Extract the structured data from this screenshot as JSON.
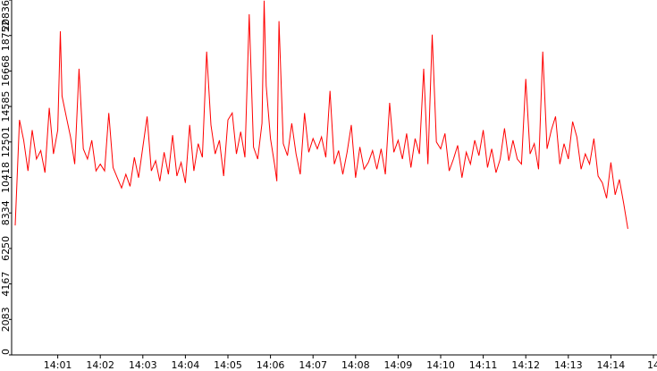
{
  "chart_data": {
    "type": "line",
    "title": "",
    "xlabel": "",
    "ylabel": "",
    "grid": false,
    "line_color": "#ff0000",
    "axis_color": "#000000",
    "ylim": [
      0,
      20836
    ],
    "y_ticks": [
      0,
      2083,
      4167,
      6250,
      8334,
      10418,
      12501,
      14585,
      16668,
      18752,
      20836
    ],
    "y_tick_labels": [
      "0",
      "2083",
      "4167",
      "6250",
      "8334",
      "10418",
      "12501",
      "14585",
      "16668",
      "18752",
      "20836"
    ],
    "x_range_minutes": [
      0,
      14.4
    ],
    "x_ticks": [
      1,
      2,
      3,
      4,
      5,
      6,
      7,
      8,
      9,
      10,
      11,
      12,
      13,
      14,
      15
    ],
    "x_tick_labels": [
      "14:01",
      "14:02",
      "14:03",
      "14:04",
      "14:05",
      "14:06",
      "14:07",
      "14:08",
      "14:09",
      "14:10",
      "14:11",
      "14:12",
      "14:13",
      "14:14",
      "14"
    ],
    "series": [
      {
        "x": [
          0.0,
          0.1,
          0.2,
          0.3,
          0.4,
          0.5,
          0.6,
          0.7,
          0.8,
          0.9,
          1.0,
          1.06,
          1.1,
          1.2,
          1.3,
          1.4,
          1.5,
          1.6,
          1.7,
          1.8,
          1.9,
          2.0,
          2.1,
          2.2,
          2.3,
          2.4,
          2.5,
          2.6,
          2.7,
          2.8,
          2.9,
          3.0,
          3.1,
          3.2,
          3.3,
          3.4,
          3.5,
          3.6,
          3.7,
          3.8,
          3.9,
          4.0,
          4.1,
          4.2,
          4.3,
          4.4,
          4.5,
          4.6,
          4.7,
          4.8,
          4.9,
          5.0,
          5.1,
          5.2,
          5.3,
          5.4,
          5.5,
          5.6,
          5.7,
          5.8,
          5.85,
          5.9,
          6.0,
          6.1,
          6.15,
          6.2,
          6.3,
          6.4,
          6.5,
          6.6,
          6.7,
          6.8,
          6.9,
          7.0,
          7.1,
          7.2,
          7.3,
          7.4,
          7.5,
          7.6,
          7.7,
          7.8,
          7.9,
          8.0,
          8.1,
          8.2,
          8.3,
          8.4,
          8.5,
          8.6,
          8.7,
          8.8,
          8.9,
          9.0,
          9.1,
          9.2,
          9.3,
          9.4,
          9.5,
          9.6,
          9.7,
          9.8,
          9.9,
          10.0,
          10.1,
          10.2,
          10.3,
          10.4,
          10.5,
          10.6,
          10.7,
          10.8,
          10.9,
          11.0,
          11.1,
          11.2,
          11.3,
          11.4,
          11.5,
          11.6,
          11.7,
          11.8,
          11.9,
          12.0,
          12.1,
          12.2,
          12.3,
          12.4,
          12.5,
          12.6,
          12.7,
          12.8,
          12.9,
          13.0,
          13.1,
          13.2,
          13.3,
          13.4,
          13.5,
          13.6,
          13.7,
          13.8,
          13.9,
          14.0,
          14.1,
          14.2,
          14.3,
          14.4
        ],
        "values": [
          7600,
          13800,
          12600,
          10800,
          13200,
          11500,
          12000,
          10700,
          14500,
          11800,
          13200,
          19000,
          15200,
          14000,
          12800,
          11200,
          16800,
          12100,
          11500,
          12600,
          10800,
          11200,
          10800,
          14200,
          11000,
          10400,
          9800,
          10600,
          9900,
          11600,
          10400,
          12200,
          14000,
          10800,
          11400,
          10200,
          11900,
          10600,
          12900,
          10500,
          11300,
          10100,
          13500,
          10800,
          12400,
          11600,
          17800,
          13500,
          11800,
          12600,
          10500,
          13800,
          14200,
          11800,
          13100,
          11600,
          20000,
          12200,
          11500,
          13600,
          20800,
          15800,
          12700,
          11100,
          10200,
          19600,
          12400,
          11700,
          13600,
          11800,
          10600,
          14200,
          11900,
          12700,
          12100,
          12800,
          11600,
          15500,
          11200,
          12000,
          10600,
          11900,
          13500,
          10400,
          12200,
          10900,
          11300,
          12000,
          10900,
          12100,
          10600,
          14800,
          11900,
          12600,
          11500,
          13000,
          11000,
          12700,
          11800,
          16800,
          11200,
          18800,
          12500,
          12100,
          13000,
          10800,
          11500,
          12300,
          10400,
          11900,
          11200,
          12600,
          11700,
          13200,
          11000,
          12100,
          10700,
          11500,
          13300,
          11400,
          12600,
          11500,
          11200,
          16200,
          11800,
          12400,
          10900,
          17800,
          12100,
          13200,
          14000,
          11200,
          12400,
          11500,
          13700,
          12800,
          10900,
          11800,
          11200,
          12700,
          10500,
          10100,
          9200,
          11300,
          9400,
          10300,
          8900,
          7400
        ]
      }
    ]
  }
}
